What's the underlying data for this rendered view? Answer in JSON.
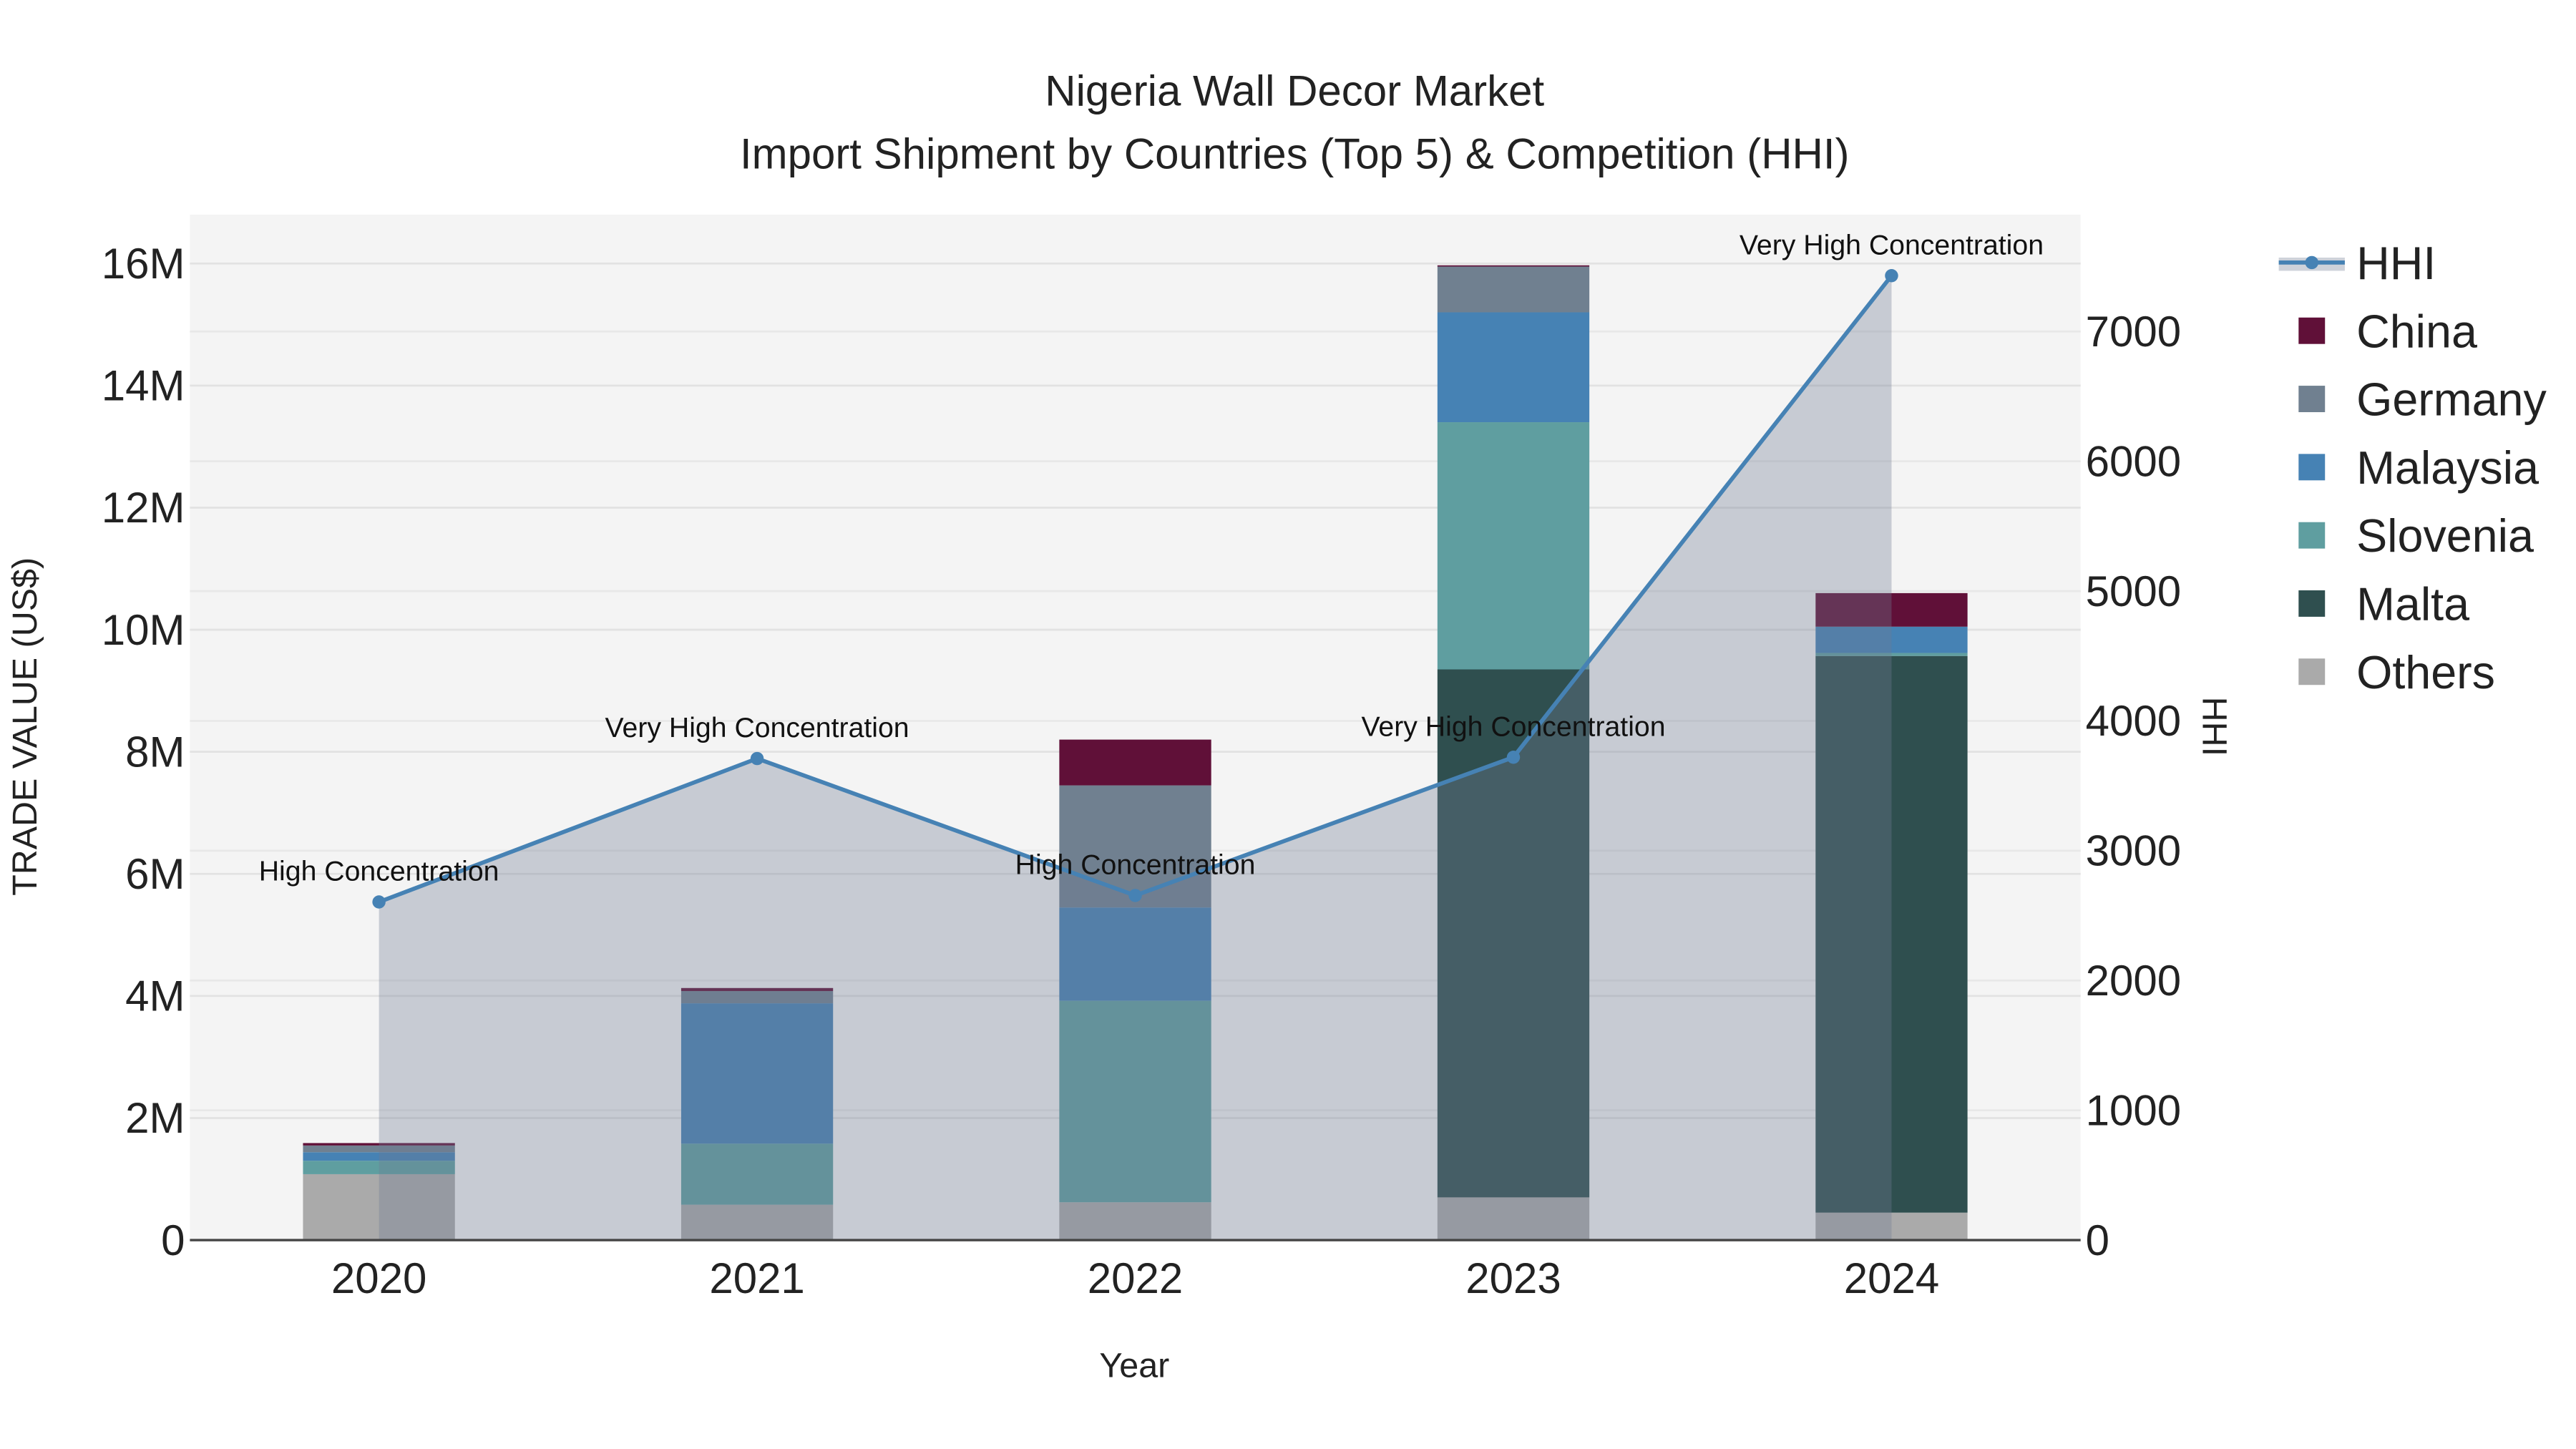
{
  "chart_data": {
    "type": "bar",
    "title": "Nigeria Wall Decor Market",
    "subtitle": "Import Shipment by Countries (Top 5) & Competition (HHI)",
    "xlabel": "Year",
    "ylabel": "TRADE VALUE (US$)",
    "y2label": "HHI",
    "categories": [
      "2020",
      "2021",
      "2022",
      "2023",
      "2024"
    ],
    "ylim": [
      0,
      16800000
    ],
    "y2lim": [
      0,
      7900
    ],
    "yticks": [
      0,
      2000000,
      4000000,
      6000000,
      8000000,
      10000000,
      12000000,
      14000000,
      16000000
    ],
    "ytick_labels": [
      "0",
      "2M",
      "4M",
      "6M",
      "8M",
      "10M",
      "12M",
      "14M",
      "16M"
    ],
    "y2ticks": [
      0,
      1000,
      2000,
      3000,
      4000,
      5000,
      6000,
      7000
    ],
    "y2tick_labels": [
      "0",
      "1000",
      "2000",
      "3000",
      "4000",
      "5000",
      "6000",
      "7000"
    ],
    "stacked": true,
    "series": [
      {
        "name": "Others",
        "color": "#aaaaaa",
        "values": [
          1080000,
          580000,
          620000,
          700000,
          450000
        ]
      },
      {
        "name": "Malta",
        "color": "#2f4f4f",
        "values": [
          0,
          0,
          0,
          8650000,
          9120000
        ]
      },
      {
        "name": "Slovenia",
        "color": "#5f9ea0",
        "values": [
          220000,
          1000000,
          3300000,
          4050000,
          50000
        ]
      },
      {
        "name": "Malaysia",
        "color": "#4682b4",
        "values": [
          140000,
          2300000,
          1530000,
          1800000,
          430000
        ]
      },
      {
        "name": "Germany",
        "color": "#708090",
        "values": [
          110000,
          200000,
          2000000,
          750000,
          0
        ]
      },
      {
        "name": "China",
        "color": "#601038",
        "values": [
          40000,
          50000,
          750000,
          20000,
          550000
        ]
      }
    ],
    "line": {
      "name": "HHI",
      "color": "#4682b4",
      "values": [
        2605,
        3710,
        2655,
        3720,
        7430
      ],
      "annotations": [
        "High Concentration",
        "Very High Concentration",
        "High Concentration",
        "Very High Concentration",
        "Very High Concentration"
      ]
    },
    "legend_order": [
      "HHI",
      "China",
      "Germany",
      "Malaysia",
      "Slovenia",
      "Malta",
      "Others"
    ],
    "legend_position": "right",
    "grid": true
  }
}
